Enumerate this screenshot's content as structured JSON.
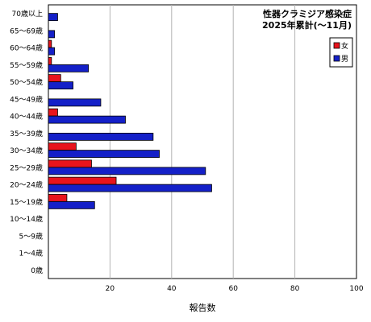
{
  "chart_data": {
    "type": "bar",
    "orientation": "horizontal",
    "title": "性器クラミジア感染症",
    "subtitle": "2025年累計(～11月)",
    "xlabel": "報告数",
    "ylabel": "",
    "xlim": [
      0,
      100
    ],
    "xticks": [
      "20",
      "40",
      "60",
      "80",
      "100"
    ],
    "grid": true,
    "legend_position": "top-right",
    "categories": [
      "70歳以上",
      "65～69歳",
      "60～64歳",
      "55～59歳",
      "50～54歳",
      "45～49歳",
      "40～44歳",
      "35～39歳",
      "30～34歳",
      "25～29歳",
      "20～24歳",
      "15～19歳",
      "10～14歳",
      "5～9歳",
      "1～4歳",
      "0歳"
    ],
    "series": [
      {
        "name": "女",
        "color": "#e8141c",
        "values": [
          0,
          0,
          1,
          1,
          4,
          0,
          3,
          0,
          9,
          14,
          22,
          6,
          0,
          0,
          0,
          0
        ]
      },
      {
        "name": "男",
        "color": "#1420c8",
        "values": [
          3,
          2,
          2,
          13,
          8,
          17,
          25,
          34,
          36,
          51,
          53,
          15,
          0,
          0,
          0,
          0
        ]
      }
    ]
  }
}
